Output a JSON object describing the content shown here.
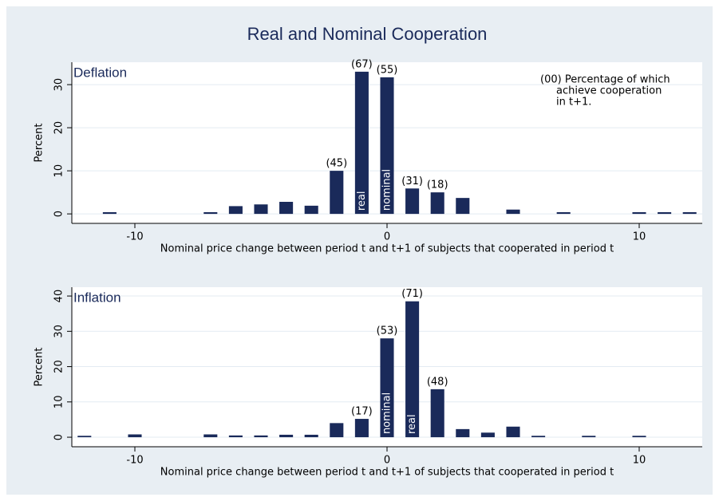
{
  "title": "Real and Nominal Cooperation",
  "chart_data": [
    {
      "type": "bar",
      "panel_label": "Deflation",
      "y_label": "Percent",
      "x_label": "Nominal price change between period t and t+1 of subjects that cooperated in period t",
      "note": [
        "(00) Percentage of which",
        "achieve cooperation",
        "in t+1."
      ],
      "x": [
        -11,
        -7,
        -6,
        -5,
        -4,
        -3,
        -2,
        -1,
        0,
        1,
        2,
        3,
        5,
        7,
        10,
        11,
        12
      ],
      "values": [
        0.4,
        0.4,
        1.8,
        2.2,
        2.8,
        1.9,
        10,
        33,
        31.7,
        5.9,
        5,
        3.7,
        1,
        0.4,
        0.4,
        0.4,
        0.4
      ],
      "bar_labels": [
        null,
        null,
        null,
        null,
        null,
        null,
        "(45)",
        "(67)",
        "(55)",
        "(31)",
        "(18)",
        null,
        null,
        null,
        null,
        null,
        null
      ],
      "inner_labels": [
        null,
        null,
        null,
        null,
        null,
        null,
        null,
        "real",
        "nominal",
        null,
        null,
        null,
        null,
        null,
        null,
        null,
        null
      ],
      "color": "#1a2a5a",
      "xlim": [
        -12.5,
        12.5
      ],
      "ylim": [
        -2.2,
        35.2
      ],
      "xticks": [
        -10,
        0,
        10
      ],
      "yticks": [
        0,
        10,
        20,
        30
      ],
      "grid": true
    },
    {
      "type": "bar",
      "panel_label": "Inflation",
      "y_label": "Percent",
      "x_label": "Nominal price change between period t and t+1 of subjects that cooperated in period t",
      "x": [
        -12,
        -10,
        -7,
        -6,
        -5,
        -4,
        -3,
        -2,
        -1,
        0,
        1,
        2,
        3,
        4,
        5,
        6,
        8,
        10
      ],
      "values": [
        0.4,
        0.8,
        0.8,
        0.5,
        0.5,
        0.7,
        0.7,
        4,
        5.2,
        28,
        38.5,
        13.6,
        2.3,
        1.3,
        3,
        0.4,
        0.4,
        0.4
      ],
      "bar_labels": [
        null,
        null,
        null,
        null,
        null,
        null,
        null,
        null,
        "(17)",
        "(53)",
        "(71)",
        "(48)",
        null,
        null,
        null,
        null,
        null,
        null
      ],
      "inner_labels": [
        null,
        null,
        null,
        null,
        null,
        null,
        null,
        null,
        null,
        "nominal",
        "real",
        null,
        null,
        null,
        null,
        null,
        null,
        null
      ],
      "color": "#1a2a5a",
      "xlim": [
        -12.5,
        12.5
      ],
      "ylim": [
        -2.7,
        42.5
      ],
      "xticks": [
        -10,
        0,
        10
      ],
      "yticks": [
        0,
        10,
        20,
        30,
        40
      ],
      "grid": true
    }
  ]
}
